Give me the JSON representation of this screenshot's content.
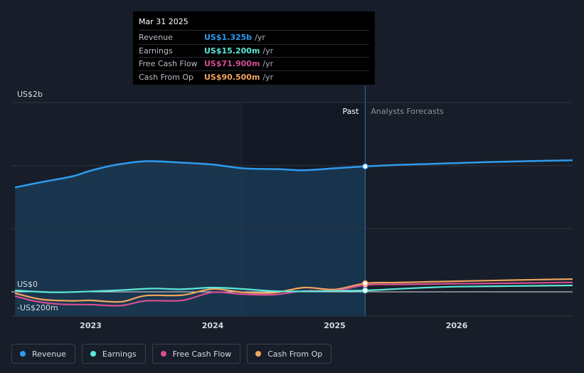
{
  "tooltip": {
    "date": "Mar 31 2025",
    "rows": [
      {
        "label": "Revenue",
        "value": "US$1.325b",
        "unit": "/yr",
        "color": "#2e9bef"
      },
      {
        "label": "Earnings",
        "value": "US$15.200m",
        "unit": "/yr",
        "color": "#5de8d8"
      },
      {
        "label": "Free Cash Flow",
        "value": "US$71.900m",
        "unit": "/yr",
        "color": "#d54f94"
      },
      {
        "label": "Cash From Op",
        "value": "US$90.500m",
        "unit": "/yr",
        "color": "#f0a55e"
      }
    ]
  },
  "legend": [
    {
      "label": "Revenue",
      "color": "#2e9bef"
    },
    {
      "label": "Earnings",
      "color": "#5de8d8"
    },
    {
      "label": "Free Cash Flow",
      "color": "#d54f94"
    },
    {
      "label": "Cash From Op",
      "color": "#f0a55e"
    }
  ],
  "chart_data": {
    "type": "line",
    "title": "",
    "units": "US$ millions",
    "ylim": [
      -200,
      2000
    ],
    "xlim": [
      2022.35,
      2026.95
    ],
    "y_tick_labels": [
      {
        "label": "US$2b",
        "value": 2000
      },
      {
        "label": "US$0",
        "value": 0
      },
      {
        "label": "-US$200m",
        "value": -200
      }
    ],
    "x_tick_labels": [
      {
        "label": "2023",
        "value": 2023.0
      },
      {
        "label": "2024",
        "value": 2024.0
      },
      {
        "label": "2025",
        "value": 2025.0
      },
      {
        "label": "2026",
        "value": 2026.0
      }
    ],
    "past_label": "Past",
    "forecast_label": "Analysts Forecasts",
    "past_region_start": 2024.25,
    "forecast_start": 2025.25,
    "series": [
      {
        "name": "Revenue",
        "color": "#2e9bef",
        "x": [
          2022.38,
          2022.6,
          2022.85,
          2023.0,
          2023.2,
          2023.45,
          2023.75,
          2024.0,
          2024.25,
          2024.55,
          2024.75,
          2025.0,
          2025.25,
          2025.5,
          2025.75,
          2026.0,
          2026.25,
          2026.5,
          2026.75,
          2026.95
        ],
        "values": [
          1103,
          1160,
          1220,
          1280,
          1340,
          1380,
          1365,
          1345,
          1305,
          1295,
          1285,
          1305,
          1325,
          1340,
          1350,
          1360,
          1370,
          1378,
          1385,
          1390
        ]
      },
      {
        "name": "Earnings",
        "color": "#5de8d8",
        "x": [
          2022.38,
          2022.7,
          2023.0,
          2023.25,
          2023.5,
          2023.75,
          2024.0,
          2024.25,
          2024.5,
          2024.75,
          2025.0,
          2025.25,
          2025.5,
          2025.75,
          2026.0,
          2026.5,
          2026.95
        ],
        "values": [
          15,
          -5,
          5,
          18,
          35,
          28,
          45,
          30,
          8,
          5,
          10,
          15,
          30,
          45,
          55,
          62,
          68
        ]
      },
      {
        "name": "Free Cash Flow",
        "color": "#d54f94",
        "x": [
          2022.38,
          2022.55,
          2022.75,
          2023.0,
          2023.25,
          2023.45,
          2023.75,
          2024.0,
          2024.25,
          2024.5,
          2024.75,
          2025.0,
          2025.25,
          2025.5,
          2025.75,
          2026.0,
          2026.5,
          2026.95
        ],
        "values": [
          -45,
          -100,
          -130,
          -135,
          -145,
          -95,
          -90,
          -5,
          -25,
          -30,
          10,
          12,
          72,
          78,
          82,
          86,
          92,
          100
        ]
      },
      {
        "name": "Cash From Op",
        "color": "#f0a55e",
        "x": [
          2022.38,
          2022.6,
          2022.85,
          2023.0,
          2023.25,
          2023.45,
          2023.75,
          2024.0,
          2024.25,
          2024.5,
          2024.75,
          2025.0,
          2025.25,
          2025.5,
          2025.75,
          2026.0,
          2026.5,
          2026.95
        ],
        "values": [
          -15,
          -80,
          -95,
          -90,
          -105,
          -40,
          -35,
          30,
          -5,
          -10,
          45,
          25,
          90,
          98,
          105,
          112,
          125,
          135
        ]
      }
    ]
  }
}
